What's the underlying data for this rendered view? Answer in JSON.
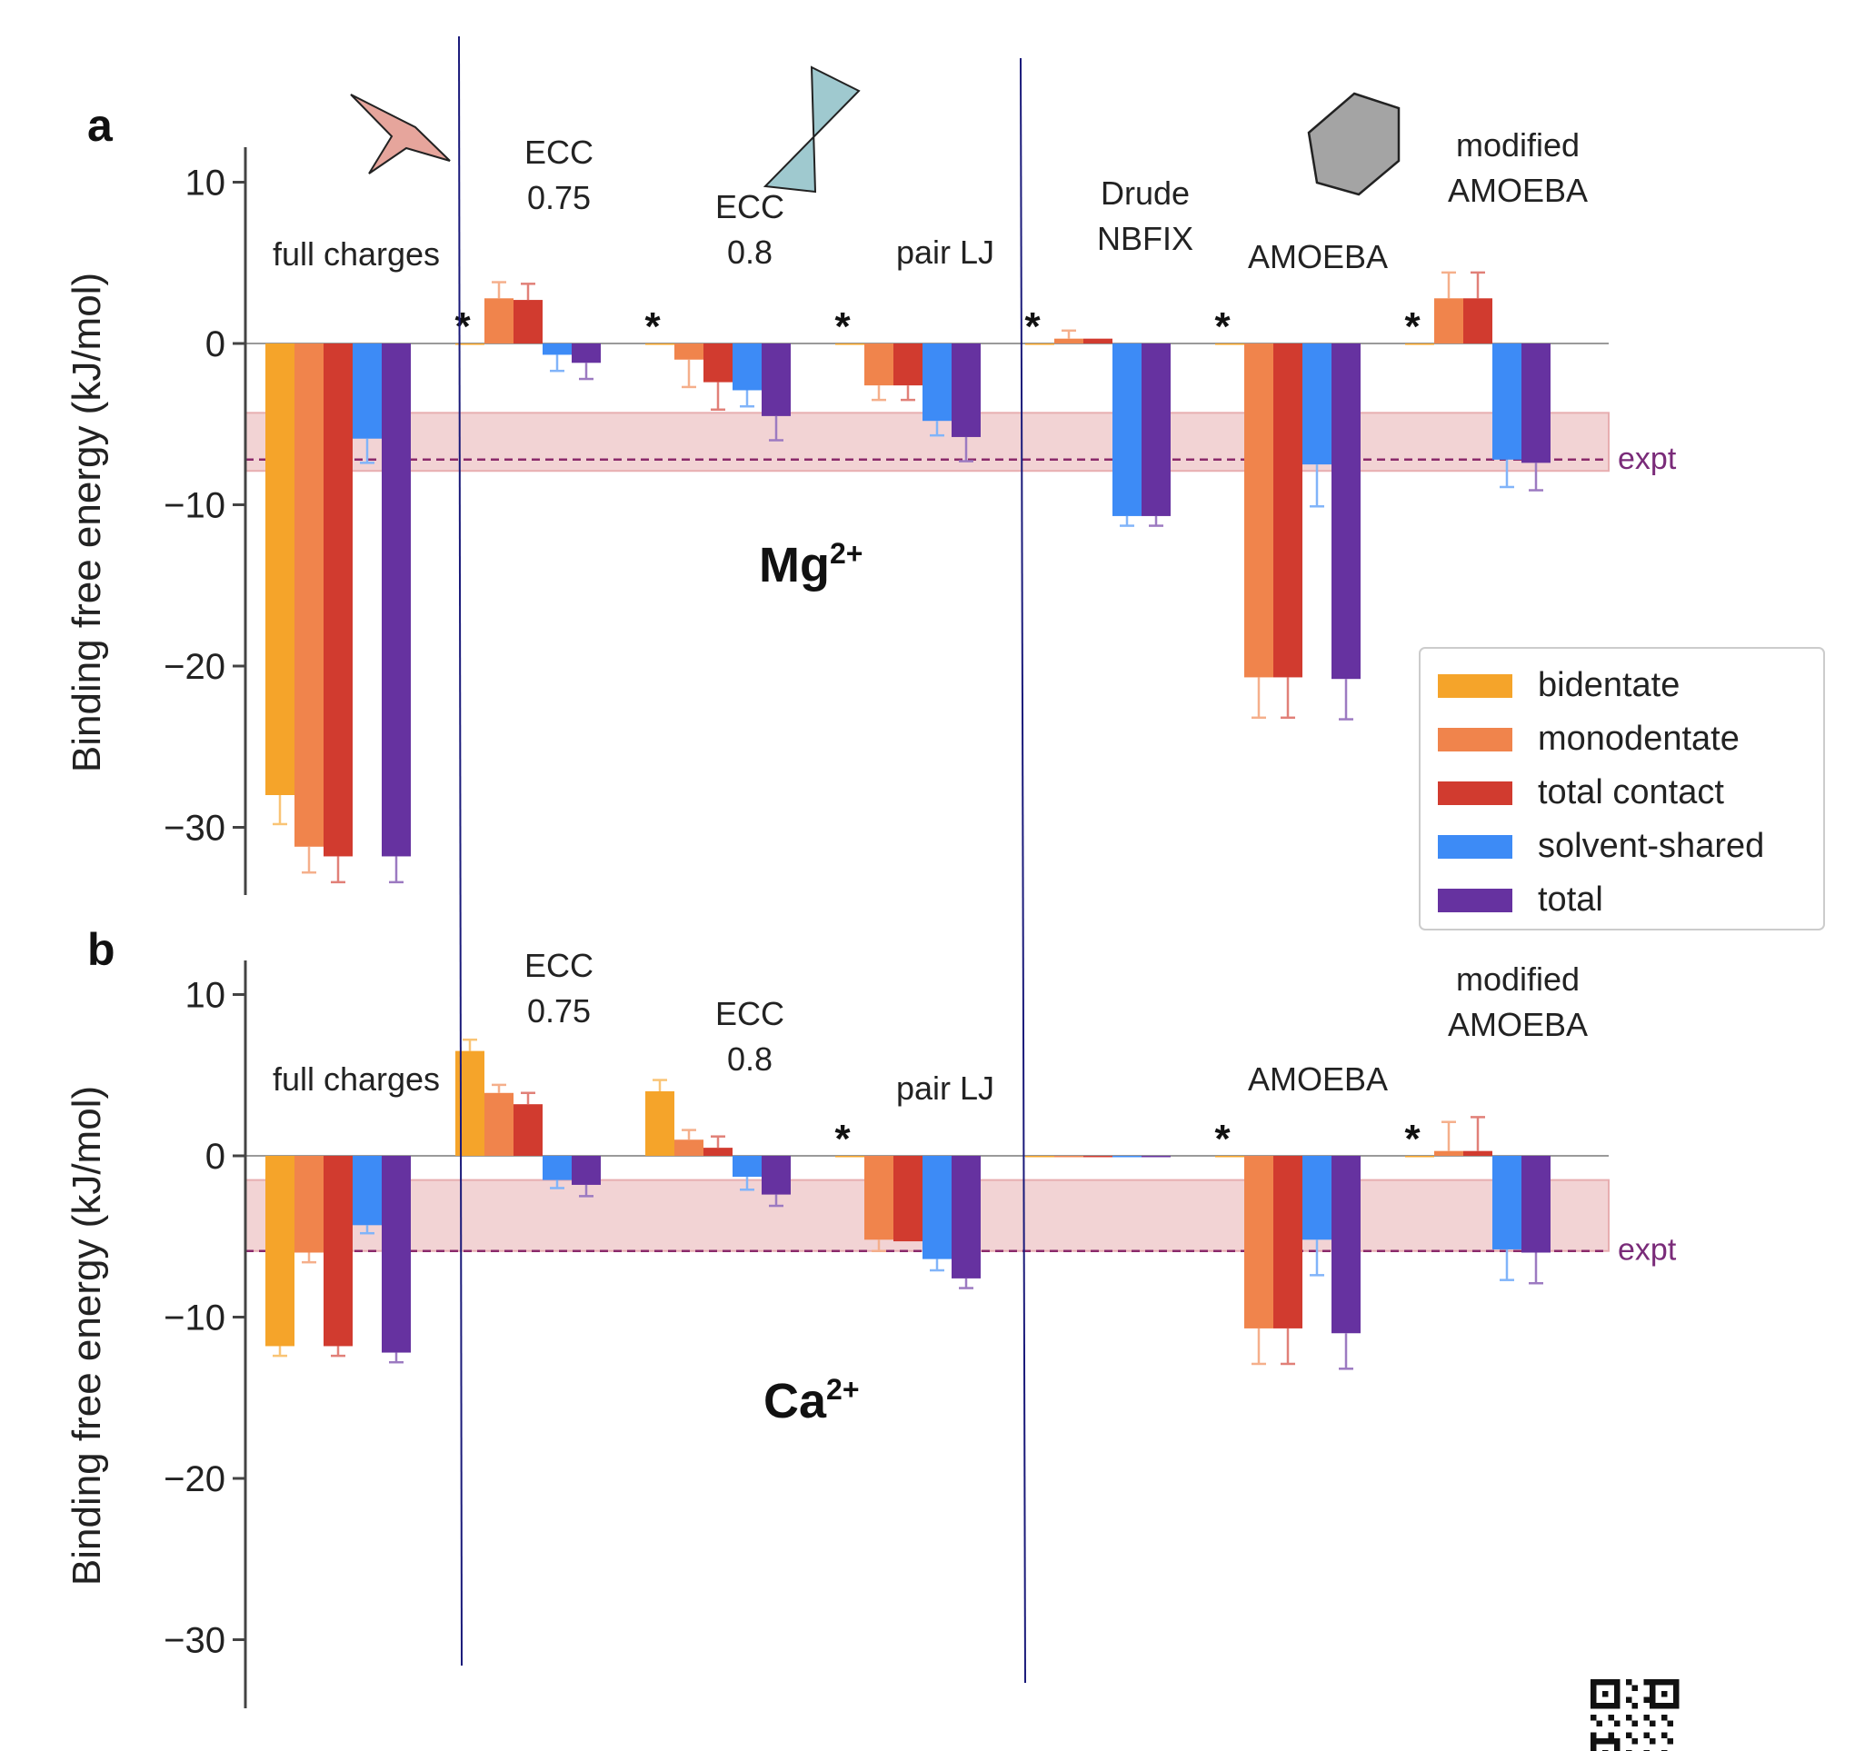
{
  "figure": {
    "legend": {
      "placement": "right, between panels",
      "entries": [
        {
          "label": "bidentate",
          "color": "#f5a42a"
        },
        {
          "label": "monodentate",
          "color": "#f0844c"
        },
        {
          "label": "total contact",
          "color": "#d13b2f"
        },
        {
          "label": "solvent-shared",
          "color": "#3d8bf6"
        },
        {
          "label": "total",
          "color": "#6632a0"
        }
      ]
    },
    "decorations": {
      "shapes": [
        "star",
        "bowtie",
        "hexagon"
      ],
      "qr_code": true
    }
  },
  "chart_data": [
    {
      "type": "bar",
      "panel_label": "a",
      "ion_label": "Mg",
      "ion_sup": "2+",
      "ylabel": "Binding free energy (kJ/mol)",
      "ylim": [
        -34,
        12
      ],
      "yticks": [
        10,
        0,
        -10,
        -20,
        -30
      ],
      "ytick_labels": [
        "10",
        "0",
        "−10",
        "−20",
        "−30"
      ],
      "expt": {
        "label": "expt",
        "value": -7.2,
        "band": [
          -7.9,
          -4.3
        ]
      },
      "series_names": [
        "bidentate",
        "monodentate",
        "total contact",
        "solvent-shared",
        "total"
      ],
      "groups": [
        {
          "label": [
            "full charges"
          ],
          "star": false,
          "values": [
            -28.0,
            -31.2,
            -31.8,
            -5.9,
            -31.8
          ],
          "errors": [
            1.8,
            1.6,
            1.6,
            1.5,
            1.6
          ]
        },
        {
          "label": [
            "ECC",
            "0.75"
          ],
          "star": true,
          "values": [
            0.0,
            2.8,
            2.7,
            -0.7,
            -1.2
          ],
          "errors": [
            0,
            1.0,
            1.0,
            1.0,
            1.0
          ]
        },
        {
          "label": [
            "ECC",
            "0.8"
          ],
          "star": true,
          "values": [
            0.0,
            -1.0,
            -2.4,
            -2.9,
            -4.5
          ],
          "errors": [
            0,
            1.7,
            1.7,
            1.0,
            1.5
          ]
        },
        {
          "label": [
            "pair LJ"
          ],
          "star": true,
          "values": [
            0.0,
            -2.6,
            -2.6,
            -4.8,
            -5.8
          ],
          "errors": [
            0,
            0.9,
            0.9,
            0.9,
            1.5
          ]
        },
        {
          "label": [
            "Drude",
            "NBFIX"
          ],
          "star": true,
          "values": [
            0.0,
            0.3,
            0.3,
            -10.7,
            -10.7
          ],
          "errors": [
            0,
            0.5,
            0,
            0.6,
            0.6
          ]
        },
        {
          "label": [
            "AMOEBA"
          ],
          "star": true,
          "values": [
            0.0,
            -20.7,
            -20.7,
            -7.5,
            -20.8
          ],
          "errors": [
            0,
            2.5,
            2.5,
            2.6,
            2.5
          ]
        },
        {
          "label": [
            "modified",
            "AMOEBA"
          ],
          "star": true,
          "values": [
            0.0,
            2.8,
            2.8,
            -7.2,
            -7.4
          ],
          "errors": [
            0,
            1.6,
            1.6,
            1.7,
            1.7
          ]
        }
      ]
    },
    {
      "type": "bar",
      "panel_label": "b",
      "ion_label": "Ca",
      "ion_sup": "2+",
      "ylabel": "Binding free energy (kJ/mol)",
      "ylim": [
        -34,
        12
      ],
      "yticks": [
        10,
        0,
        -10,
        -20,
        -30
      ],
      "ytick_labels": [
        "10",
        "0",
        "−10",
        "−20",
        "−30"
      ],
      "expt": {
        "label": "expt",
        "value": -5.9,
        "band": [
          -5.9,
          -1.5
        ]
      },
      "series_names": [
        "bidentate",
        "monodentate",
        "total contact",
        "solvent-shared",
        "total"
      ],
      "groups": [
        {
          "label": [
            "full charges"
          ],
          "star": false,
          "values": [
            -11.8,
            -6.0,
            -11.8,
            -4.3,
            -12.2
          ],
          "errors": [
            0.6,
            0.6,
            0.6,
            0.5,
            0.6
          ]
        },
        {
          "label": [
            "ECC",
            "0.75"
          ],
          "star": false,
          "values": [
            6.5,
            3.9,
            3.2,
            -1.5,
            -1.8
          ],
          "errors": [
            0.7,
            0.5,
            0.7,
            0.5,
            0.7
          ]
        },
        {
          "label": [
            "ECC",
            "0.8"
          ],
          "star": false,
          "values": [
            4.0,
            1.0,
            0.5,
            -1.3,
            -2.4
          ],
          "errors": [
            0.7,
            0.6,
            0.7,
            0.8,
            0.7
          ]
        },
        {
          "label": [
            "pair LJ"
          ],
          "star": true,
          "values": [
            0.0,
            -5.2,
            -5.3,
            -6.4,
            -7.6
          ],
          "errors": [
            0,
            0.7,
            0,
            0.7,
            0.6
          ]
        },
        {
          "label": [],
          "star": false,
          "values": [
            0.0,
            0.0,
            0.0,
            0.0,
            0.0
          ],
          "errors": [
            0,
            0,
            0,
            0,
            0
          ]
        },
        {
          "label": [
            "AMOEBA"
          ],
          "star": true,
          "values": [
            0.0,
            -10.7,
            -10.7,
            -5.2,
            -11.0
          ],
          "errors": [
            0,
            2.2,
            2.2,
            2.2,
            2.2
          ]
        },
        {
          "label": [
            "modified",
            "AMOEBA"
          ],
          "star": true,
          "values": [
            0.0,
            0.3,
            0.3,
            -5.8,
            -6.0
          ],
          "errors": [
            0,
            1.8,
            2.1,
            1.9,
            1.9
          ]
        }
      ]
    }
  ]
}
